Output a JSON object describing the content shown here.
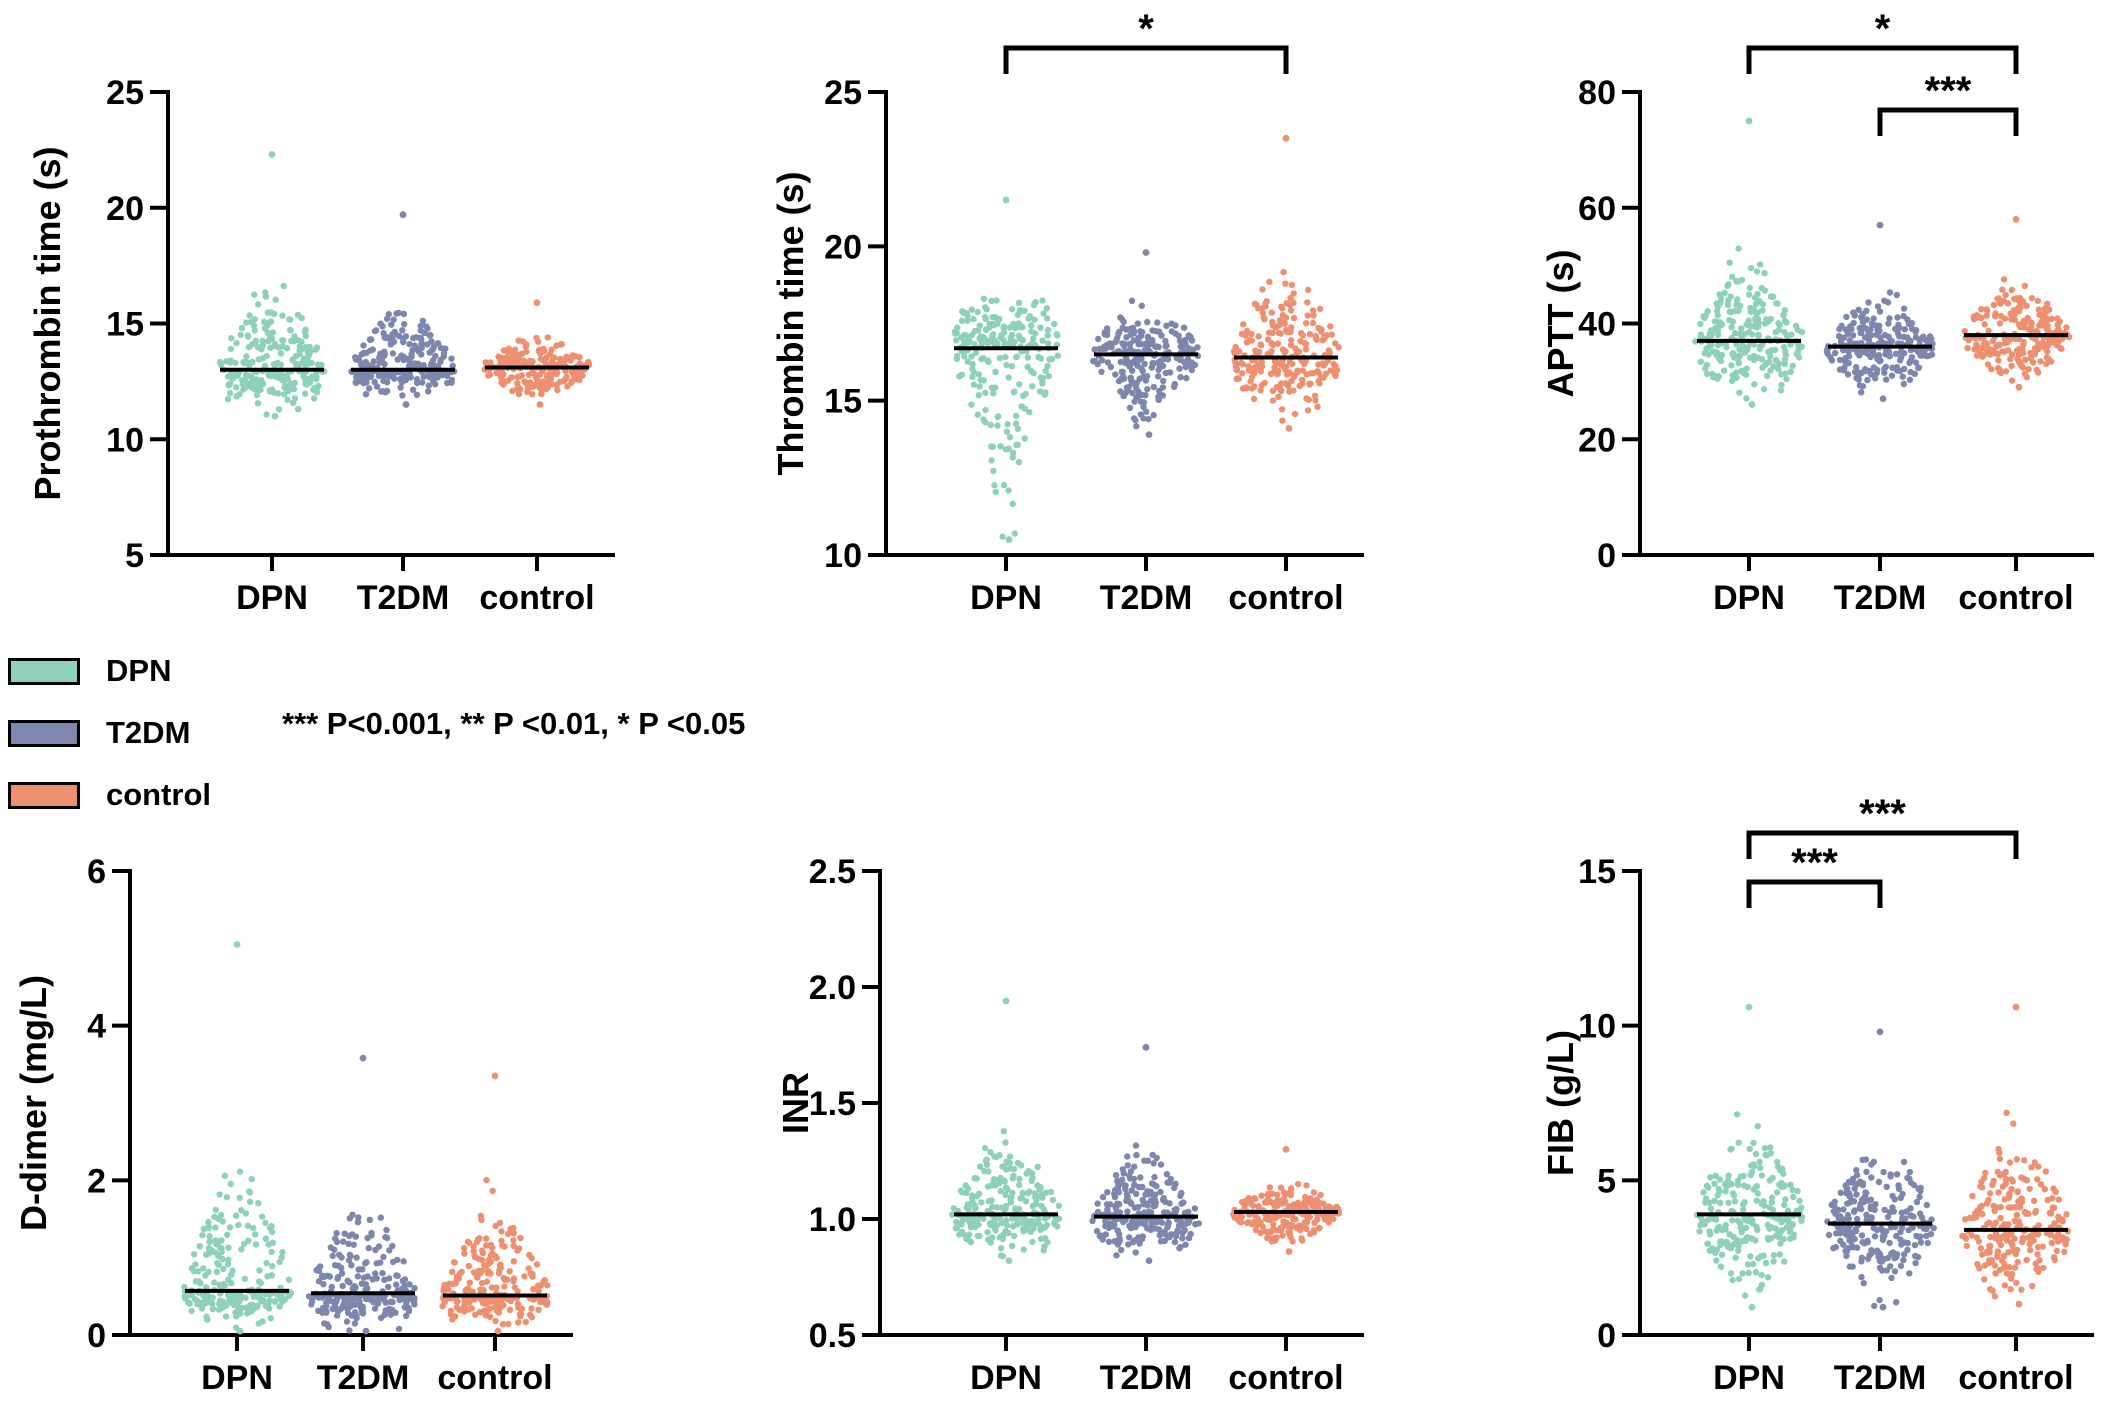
{
  "legend": {
    "items": [
      {
        "label": "DPN",
        "color": "#8ed1b9"
      },
      {
        "label": "T2DM",
        "color": "#7d86ad"
      },
      {
        "label": "control",
        "color": "#ee9070"
      }
    ]
  },
  "significance_note": "*** P<0.001, ** P <0.01, * P <0.05",
  "chart_data": [
    {
      "type": "scatter",
      "ylabel": "Prothrombin time (s)",
      "ylim": [
        5,
        25
      ],
      "yticks": [
        "5",
        "10",
        "15",
        "20",
        "25"
      ],
      "categories": [
        "DPN",
        "T2DM",
        "control"
      ],
      "medians": [
        13.0,
        13.0,
        13.1
      ],
      "spread": [
        [
          11.0,
          22.3
        ],
        [
          11.5,
          19.7
        ],
        [
          11.5,
          15.9
        ]
      ],
      "annotations": []
    },
    {
      "type": "scatter",
      "ylabel": "Thrombin time (s)",
      "ylim": [
        10,
        25
      ],
      "yticks": [
        "10",
        "15",
        "20",
        "25"
      ],
      "categories": [
        "DPN",
        "T2DM",
        "control"
      ],
      "medians": [
        16.7,
        16.5,
        16.4
      ],
      "spread": [
        [
          10.5,
          21.5
        ],
        [
          13.9,
          19.8
        ],
        [
          14.1,
          23.5
        ]
      ],
      "annotations": [
        {
          "from": "DPN",
          "to": "control",
          "label": "*"
        }
      ]
    },
    {
      "type": "scatter",
      "ylabel": "APTT (s)",
      "ylim": [
        0,
        80
      ],
      "yticks": [
        "0",
        "20",
        "40",
        "60",
        "80"
      ],
      "categories": [
        "DPN",
        "T2DM",
        "control"
      ],
      "medians": [
        37,
        36,
        38
      ],
      "spread": [
        [
          26,
          75
        ],
        [
          27,
          57
        ],
        [
          29,
          58
        ]
      ],
      "annotations": [
        {
          "from": "DPN",
          "to": "control",
          "label": "*"
        },
        {
          "from": "T2DM",
          "to": "control",
          "label": "***"
        }
      ]
    },
    {
      "type": "scatter",
      "ylabel": "D-dimer (mg/L)",
      "ylim": [
        0,
        6
      ],
      "yticks": [
        "0",
        "2",
        "4",
        "6"
      ],
      "categories": [
        "DPN",
        "T2DM",
        "control"
      ],
      "medians": [
        0.57,
        0.54,
        0.51
      ],
      "spread": [
        [
          0.05,
          5.05
        ],
        [
          0.05,
          3.58
        ],
        [
          0.05,
          3.35
        ]
      ],
      "annotations": []
    },
    {
      "type": "scatter",
      "ylabel": "INR",
      "ylim": [
        0.5,
        2.5
      ],
      "yticks": [
        "0.5",
        "1.0",
        "1.5",
        "2.0",
        "2.5"
      ],
      "categories": [
        "DPN",
        "T2DM",
        "control"
      ],
      "medians": [
        1.02,
        1.01,
        1.03
      ],
      "spread": [
        [
          0.82,
          1.94
        ],
        [
          0.82,
          1.74
        ],
        [
          0.86,
          1.3
        ]
      ],
      "annotations": []
    },
    {
      "type": "scatter",
      "ylabel": "FIB (g/L)",
      "ylim": [
        0,
        15
      ],
      "yticks": [
        "0",
        "5",
        "10",
        "15"
      ],
      "categories": [
        "DPN",
        "T2DM",
        "control"
      ],
      "medians": [
        3.9,
        3.6,
        3.4
      ],
      "spread": [
        [
          0.9,
          10.6
        ],
        [
          0.9,
          9.8
        ],
        [
          1.0,
          10.6
        ]
      ],
      "annotations": [
        {
          "from": "DPN",
          "to": "control",
          "label": "***"
        },
        {
          "from": "DPN",
          "to": "T2DM",
          "label": "***"
        }
      ]
    }
  ]
}
